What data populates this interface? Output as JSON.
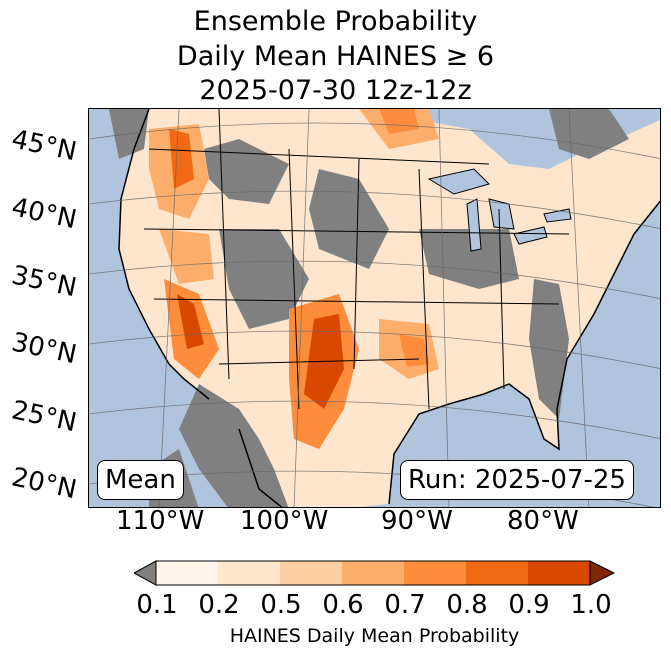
{
  "title": {
    "line1": "Ensemble Probability",
    "line2": "Daily Mean HAINES ≥ 6",
    "line3": "2025-07-30 12z-12z"
  },
  "map": {
    "stat_label": "Mean",
    "run_label": "Run: 2025-07-25",
    "latitude_labels": [
      "45°N",
      "40°N",
      "35°N",
      "30°N",
      "25°N",
      "20°N"
    ],
    "longitude_labels": [
      "110°W",
      "100°W",
      "90°W",
      "80°W"
    ],
    "ocean_color": "#b0c4de",
    "no_data_color": "#808080"
  },
  "colorbar": {
    "ticks": [
      "0.1",
      "0.2",
      "0.5",
      "0.6",
      "0.7",
      "0.8",
      "0.9",
      "1.0"
    ],
    "colors": [
      "#fff5eb",
      "#fee6ce",
      "#fdd0a2",
      "#fdae6b",
      "#fd8d3c",
      "#f16913",
      "#d94801",
      "#a63603"
    ],
    "under_color": "#808080",
    "over_color": "#7f2704",
    "label": "HAINES Daily Mean Probability"
  }
}
